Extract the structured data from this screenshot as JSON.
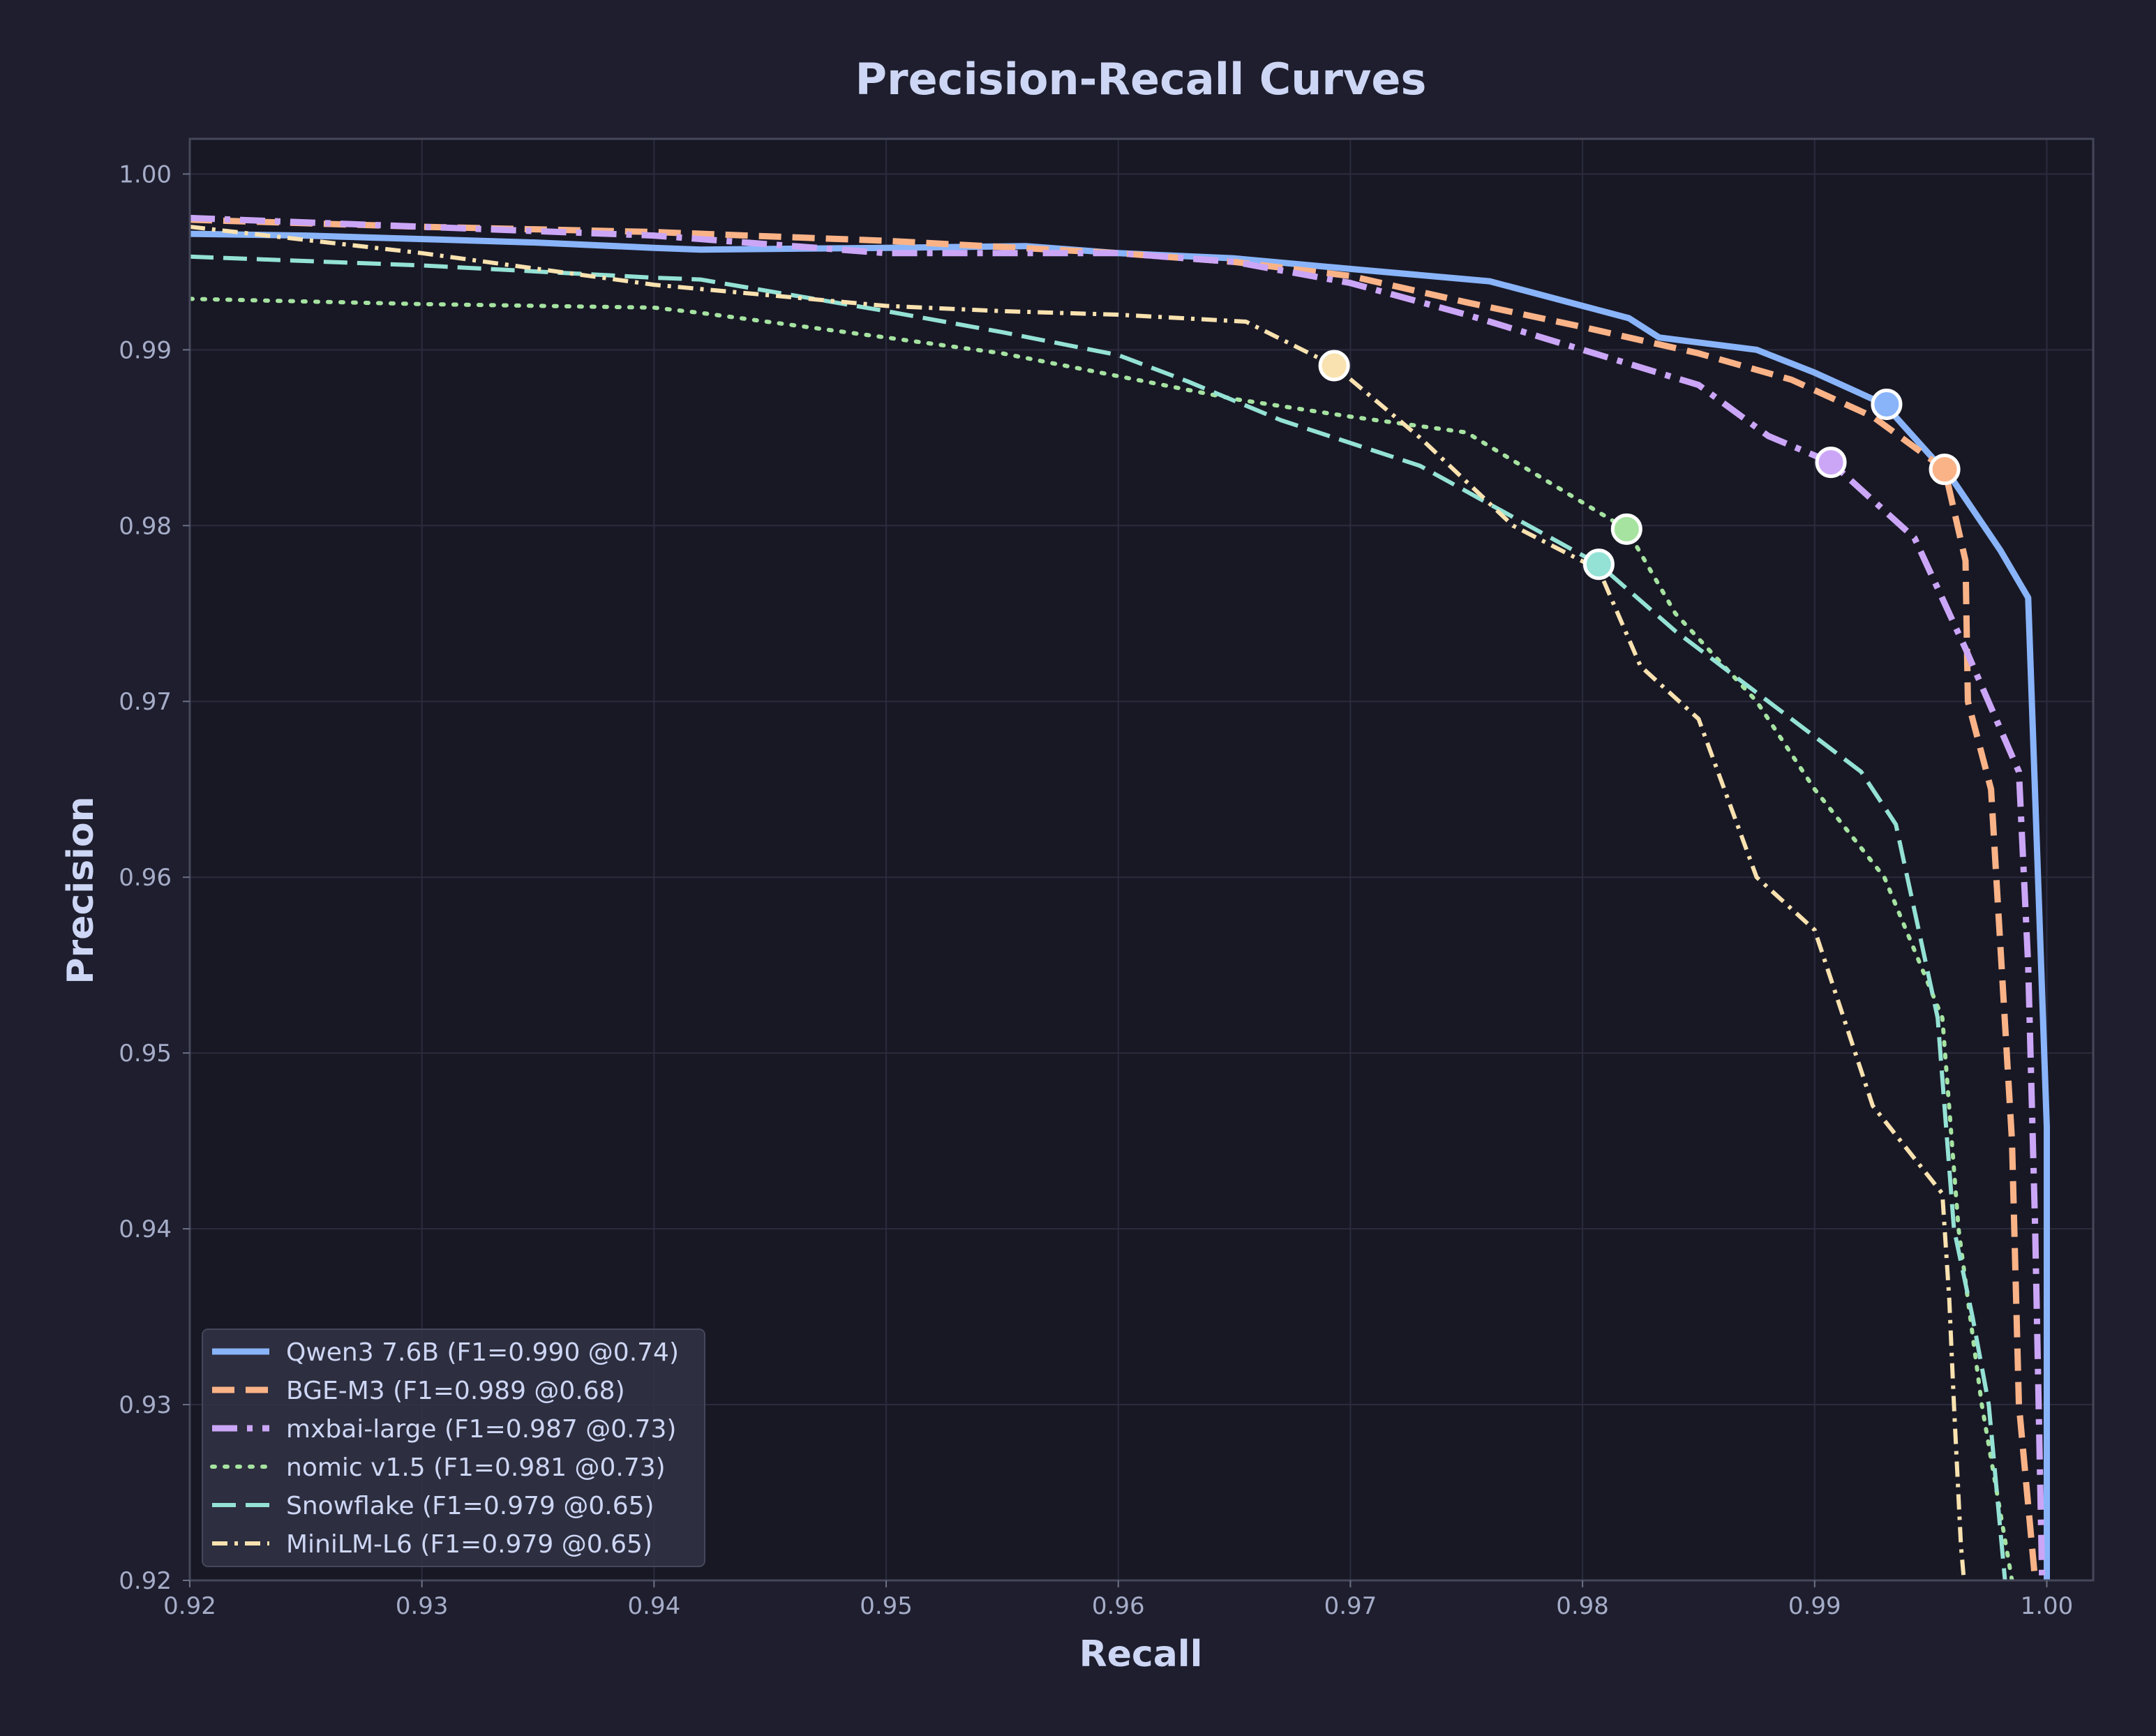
{
  "chart_data": {
    "type": "line",
    "title": "Precision-Recall Curves",
    "xlabel": "Recall",
    "ylabel": "Precision",
    "xlim": [
      0.92,
      1.002
    ],
    "ylim": [
      0.92,
      1.002
    ],
    "xticks": [
      "0.92",
      "0.93",
      "0.94",
      "0.95",
      "0.96",
      "0.97",
      "0.98",
      "0.99",
      "1.00"
    ],
    "yticks": [
      "0.92",
      "0.93",
      "0.94",
      "0.95",
      "0.96",
      "0.97",
      "0.98",
      "0.99",
      "1.00"
    ],
    "grid": true,
    "legend_position": "lower-left",
    "background": "#1e1e2e",
    "plot_background": "#181825",
    "series": [
      {
        "name": "Qwen3 7.6B (F1=0.990 @0.74)",
        "color": "#89b4fa",
        "style": "solid",
        "width": 9,
        "x": [
          0.92,
          0.925,
          0.93,
          0.935,
          0.94,
          0.942,
          0.95,
          0.956,
          0.96,
          0.965,
          0.97,
          0.976,
          0.98,
          0.982,
          0.9833,
          0.9875,
          0.99,
          0.993,
          0.996,
          0.998,
          0.9992,
          1.0,
          1.0
        ],
        "y": [
          0.9966,
          0.9965,
          0.9963,
          0.9961,
          0.9958,
          0.9957,
          0.9958,
          0.9959,
          0.9955,
          0.9952,
          0.9946,
          0.9939,
          0.9925,
          0.9918,
          0.9907,
          0.99,
          0.9887,
          0.9869,
          0.9825,
          0.9786,
          0.9759,
          0.9458,
          0.92
        ],
        "point": [
          0.9931,
          0.9869
        ]
      },
      {
        "name": "BGE-M3 (F1=0.989 @0.68)",
        "color": "#fab387",
        "style": "dashed",
        "width": 9,
        "x": [
          0.92,
          0.93,
          0.94,
          0.95,
          0.96,
          0.965,
          0.97,
          0.975,
          0.98,
          0.985,
          0.989,
          0.9925,
          0.9956,
          0.9965,
          0.9966,
          0.9976,
          0.9985,
          0.9988,
          0.9995,
          1.0
        ],
        "y": [
          0.9974,
          0.997,
          0.9967,
          0.9962,
          0.9955,
          0.995,
          0.9942,
          0.9927,
          0.9913,
          0.9898,
          0.9883,
          0.9862,
          0.9832,
          0.978,
          0.97,
          0.965,
          0.945,
          0.93,
          0.92,
          0.917
        ],
        "point": [
          0.9956,
          0.9832
        ]
      },
      {
        "name": "mxbai-large (F1=0.987 @0.73)",
        "color": "#cba6f7",
        "style": "dashdot",
        "width": 9,
        "x": [
          0.92,
          0.93,
          0.94,
          0.95,
          0.955,
          0.96,
          0.965,
          0.97,
          0.975,
          0.98,
          0.985,
          0.988,
          0.9907,
          0.9943,
          0.9965,
          0.9988,
          0.9992,
          0.9995,
          0.9998
        ],
        "y": [
          0.9975,
          0.997,
          0.9965,
          0.9955,
          0.9955,
          0.9955,
          0.995,
          0.9938,
          0.992,
          0.99,
          0.988,
          0.9851,
          0.9836,
          0.9793,
          0.973,
          0.966,
          0.955,
          0.94,
          0.92
        ],
        "point": [
          0.9907,
          0.9836
        ]
      },
      {
        "name": "nomic v1.5 (F1=0.981 @0.73)",
        "color": "#a6e3a1",
        "style": "dotted",
        "width": 6,
        "x": [
          0.92,
          0.93,
          0.94,
          0.942,
          0.95,
          0.955,
          0.96,
          0.965,
          0.97,
          0.975,
          0.9819,
          0.984,
          0.9875,
          0.99,
          0.993,
          0.9955,
          0.9962,
          0.9972,
          0.9985,
          0.999
        ],
        "y": [
          0.9929,
          0.9926,
          0.9924,
          0.9921,
          0.9907,
          0.9898,
          0.9885,
          0.9872,
          0.9862,
          0.9853,
          0.9798,
          0.975,
          0.97,
          0.965,
          0.96,
          0.952,
          0.94,
          0.93,
          0.92,
          0.918
        ],
        "point": [
          0.9819,
          0.9798
        ]
      },
      {
        "name": "Snowflake (F1=0.979 @0.65)",
        "color": "#94e2d5",
        "style": "dashed-long",
        "width": 6,
        "x": [
          0.92,
          0.93,
          0.94,
          0.942,
          0.95,
          0.955,
          0.96,
          0.963,
          0.967,
          0.973,
          0.9807,
          0.984,
          0.988,
          0.992,
          0.9935,
          0.9953,
          0.996,
          0.9968,
          0.9975,
          0.9982,
          0.9988
        ],
        "y": [
          0.9953,
          0.9948,
          0.9941,
          0.994,
          0.9922,
          0.991,
          0.9897,
          0.9882,
          0.986,
          0.9834,
          0.9778,
          0.974,
          0.97,
          0.966,
          0.963,
          0.952,
          0.94,
          0.935,
          0.93,
          0.92,
          0.918
        ],
        "point": [
          0.9807,
          0.9778
        ]
      },
      {
        "name": "MiniLM-L6 (F1=0.979 @0.65)",
        "color": "#f9e2af",
        "style": "dashdot-thin",
        "width": 6,
        "x": [
          0.92,
          0.93,
          0.94,
          0.95,
          0.955,
          0.96,
          0.9655,
          0.9693,
          0.973,
          0.977,
          0.9807,
          0.9825,
          0.985,
          0.9875,
          0.99,
          0.9925,
          0.9955,
          0.9958,
          0.996,
          0.9963,
          0.9965
        ],
        "y": [
          0.997,
          0.9955,
          0.9937,
          0.9925,
          0.9922,
          0.992,
          0.9916,
          0.9891,
          0.985,
          0.98,
          0.9775,
          0.972,
          0.969,
          0.96,
          0.957,
          0.947,
          0.942,
          0.936,
          0.93,
          0.922,
          0.919
        ],
        "point": [
          0.9693,
          0.9891
        ]
      }
    ]
  }
}
